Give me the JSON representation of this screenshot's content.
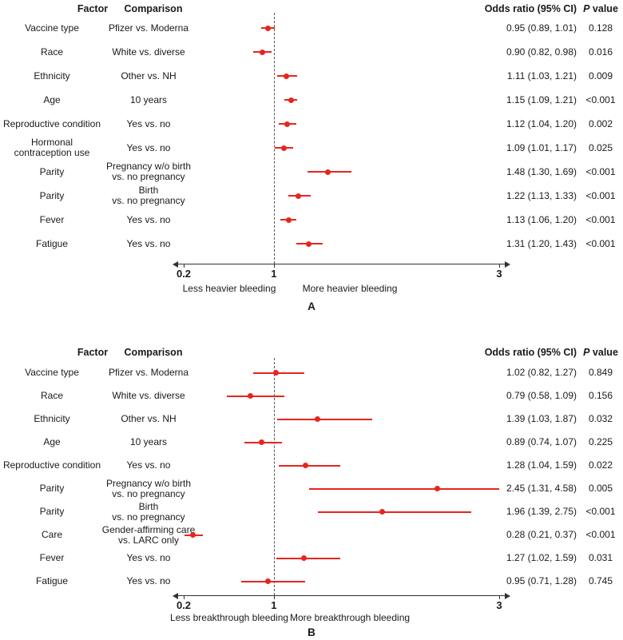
{
  "page": {
    "background": "#ffffff",
    "text_color": "#1a1a1a",
    "accent_color": "#e8251d",
    "axis_color": "#333333"
  },
  "headers": {
    "factor": "Factor",
    "comparison": "Comparison",
    "odds_ratio": "Odds ratio (95% CI)",
    "p_italic": "P",
    "p_rest": " value"
  },
  "chart_data": [
    {
      "type": "forest",
      "panel_label": "A",
      "scale": "linear",
      "axis": {
        "min": 0.2,
        "max": 3,
        "tick_values": [
          0.2,
          1,
          3
        ],
        "ticks": [
          "0.2",
          "1",
          "3"
        ],
        "reference_line": 1
      },
      "direction_labels": {
        "left": "Less heavier bleeding",
        "right": "More heavier bleeding"
      },
      "rows": [
        {
          "factor": "Vaccine type",
          "comparison": "Pfizer vs. Moderna",
          "or": 0.95,
          "ci_low": 0.89,
          "ci_high": 1.01,
          "or_text": "0.95 (0.89, 1.01)",
          "p_text": "0.128"
        },
        {
          "factor": "Race",
          "comparison": "White vs. diverse",
          "or": 0.9,
          "ci_low": 0.82,
          "ci_high": 0.98,
          "or_text": "0.90 (0.82, 0.98)",
          "p_text": "0.016"
        },
        {
          "factor": "Ethnicity",
          "comparison": "Other vs. NH",
          "or": 1.11,
          "ci_low": 1.03,
          "ci_high": 1.21,
          "or_text": "1.11 (1.03, 1.21)",
          "p_text": "0.009"
        },
        {
          "factor": "Age",
          "comparison": "10 years",
          "or": 1.15,
          "ci_low": 1.09,
          "ci_high": 1.21,
          "or_text": "1.15 (1.09, 1.21)",
          "p_text": "<0.001"
        },
        {
          "factor": "Reproductive condition",
          "comparison": "Yes vs. no",
          "or": 1.12,
          "ci_low": 1.04,
          "ci_high": 1.2,
          "or_text": "1.12 (1.04, 1.20)",
          "p_text": "0.002"
        },
        {
          "factor": "Hormonal\ncontraception use",
          "comparison": "Yes vs. no",
          "or": 1.09,
          "ci_low": 1.01,
          "ci_high": 1.17,
          "or_text": "1.09 (1.01, 1.17)",
          "p_text": "0.025"
        },
        {
          "factor": "Parity",
          "comparison": "Pregnancy w/o birth\nvs. no pregnancy",
          "or": 1.48,
          "ci_low": 1.3,
          "ci_high": 1.69,
          "or_text": "1.48 (1.30, 1.69)",
          "p_text": "<0.001"
        },
        {
          "factor": "Parity",
          "comparison": "Birth\nvs. no pregnancy",
          "or": 1.22,
          "ci_low": 1.13,
          "ci_high": 1.33,
          "or_text": "1.22 (1.13, 1.33)",
          "p_text": "<0.001"
        },
        {
          "factor": "Fever",
          "comparison": "Yes vs. no",
          "or": 1.13,
          "ci_low": 1.06,
          "ci_high": 1.2,
          "or_text": "1.13 (1.06, 1.20)",
          "p_text": "<0.001"
        },
        {
          "factor": "Fatigue",
          "comparison": "Yes vs. no",
          "or": 1.31,
          "ci_low": 1.2,
          "ci_high": 1.43,
          "or_text": "1.31 (1.20, 1.43)",
          "p_text": "<0.001"
        }
      ]
    },
    {
      "type": "forest",
      "panel_label": "B",
      "scale": "linear",
      "axis": {
        "min": 0.2,
        "max": 3,
        "tick_values": [
          0.2,
          1,
          3
        ],
        "ticks": [
          "0.2",
          "1",
          "3"
        ],
        "reference_line": 1
      },
      "direction_labels": {
        "left": "Less breakthrough bleeding",
        "right": "More breakthrough bleeding"
      },
      "rows": [
        {
          "factor": "Vaccine type",
          "comparison": "Pfizer vs. Moderna",
          "or": 1.02,
          "ci_low": 0.82,
          "ci_high": 1.27,
          "or_text": "1.02 (0.82, 1.27)",
          "p_text": "0.849"
        },
        {
          "factor": "Race",
          "comparison": "White vs. diverse",
          "or": 0.79,
          "ci_low": 0.58,
          "ci_high": 1.09,
          "or_text": "0.79 (0.58, 1.09)",
          "p_text": "0.156"
        },
        {
          "factor": "Ethnicity",
          "comparison": "Other vs. NH",
          "or": 1.39,
          "ci_low": 1.03,
          "ci_high": 1.87,
          "or_text": "1.39 (1.03, 1.87)",
          "p_text": "0.032"
        },
        {
          "factor": "Age",
          "comparison": "10 years",
          "or": 0.89,
          "ci_low": 0.74,
          "ci_high": 1.07,
          "or_text": "0.89 (0.74, 1.07)",
          "p_text": "0.225"
        },
        {
          "factor": "Reproductive condition",
          "comparison": "Yes vs. no",
          "or": 1.28,
          "ci_low": 1.04,
          "ci_high": 1.59,
          "or_text": "1.28 (1.04, 1.59)",
          "p_text": "0.022"
        },
        {
          "factor": "Parity",
          "comparison": "Pregnancy w/o birth\nvs. no pregnancy",
          "or": 2.45,
          "ci_low": 1.31,
          "ci_high": 4.58,
          "or_text": "2.45 (1.31, 4.58)",
          "p_text": "0.005"
        },
        {
          "factor": "Parity",
          "comparison": "Birth\nvs. no pregnancy",
          "or": 1.96,
          "ci_low": 1.39,
          "ci_high": 2.75,
          "or_text": "1.96 (1.39, 2.75)",
          "p_text": "<0.001"
        },
        {
          "factor": "Care",
          "comparison": "Gender-affirming care\nvs. LARC only",
          "or": 0.28,
          "ci_low": 0.21,
          "ci_high": 0.37,
          "or_text": "0.28 (0.21, 0.37)",
          "p_text": "<0.001"
        },
        {
          "factor": "Fever",
          "comparison": "Yes vs. no",
          "or": 1.27,
          "ci_low": 1.02,
          "ci_high": 1.59,
          "or_text": "1.27 (1.02, 1.59)",
          "p_text": "0.031"
        },
        {
          "factor": "Fatigue",
          "comparison": "Yes vs. no",
          "or": 0.95,
          "ci_low": 0.71,
          "ci_high": 1.28,
          "or_text": "0.95 (0.71, 1.28)",
          "p_text": "0.745"
        }
      ]
    }
  ]
}
